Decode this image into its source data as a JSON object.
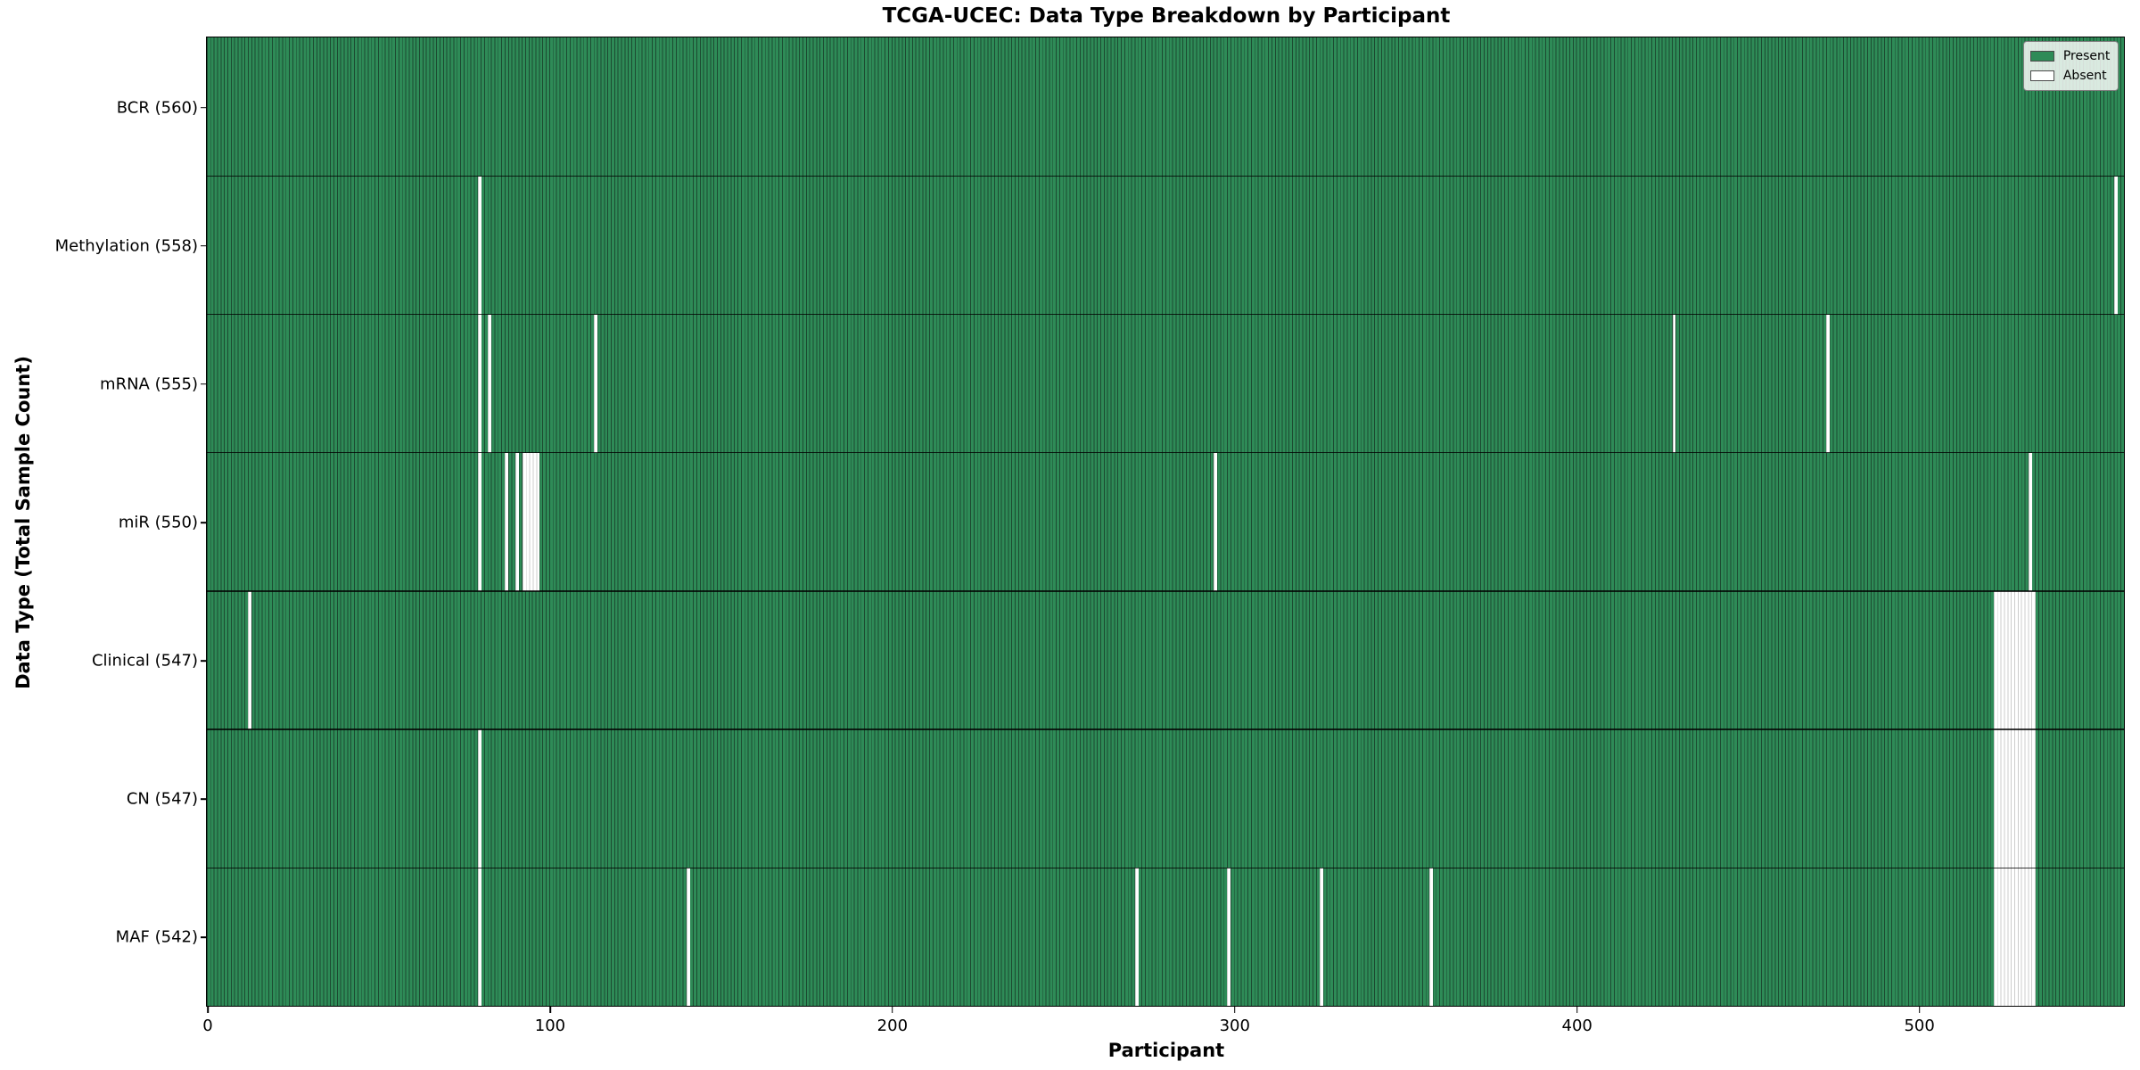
{
  "colors": {
    "present": "#2e8b57",
    "cell_edge": "#1c4a31",
    "absent": "#ffffff",
    "absent_edge": "#cccccc",
    "row_divider": "#1a1a1a",
    "spine": "#000000"
  },
  "chart_data": {
    "type": "heatmap",
    "title": "TCGA-UCEC: Data Type Breakdown by Participant",
    "xlabel": "Participant",
    "ylabel": "Data Type (Total Sample Count)",
    "n_participants": 560,
    "x_ticks": [
      0,
      100,
      200,
      300,
      400,
      500
    ],
    "grid": false,
    "legend_position": "upper right",
    "legend_entries": [
      {
        "label": "Present",
        "color": "#2e8b57"
      },
      {
        "label": "Absent",
        "color": "#ffffff"
      }
    ],
    "value_encoding": {
      "present": 1,
      "absent": 0
    },
    "rows": [
      {
        "label": "BCR (560)",
        "data_type": "BCR",
        "present_count": 560,
        "absent_participants": []
      },
      {
        "label": "Methylation (558)",
        "data_type": "Methylation",
        "present_count": 558,
        "absent_participants": [
          79,
          557
        ]
      },
      {
        "label": "mRNA (555)",
        "data_type": "mRNA",
        "present_count": 555,
        "absent_participants": [
          79,
          82,
          113,
          428,
          473
        ]
      },
      {
        "label": "miR (550)",
        "data_type": "miR",
        "present_count": 550,
        "absent_participants": [
          79,
          87,
          90,
          92,
          93,
          94,
          95,
          96,
          294,
          532
        ]
      },
      {
        "label": "Clinical (547)",
        "data_type": "Clinical",
        "present_count": 547,
        "absent_participants": [
          12,
          522,
          523,
          524,
          525,
          526,
          527,
          528,
          529,
          530,
          531,
          532,
          533
        ]
      },
      {
        "label": "CN (547)",
        "data_type": "CN",
        "present_count": 547,
        "absent_participants": [
          79,
          522,
          523,
          524,
          525,
          526,
          527,
          528,
          529,
          530,
          531,
          532,
          533
        ]
      },
      {
        "label": "MAF (542)",
        "data_type": "MAF",
        "present_count": 542,
        "absent_participants": [
          79,
          140,
          271,
          298,
          325,
          357,
          522,
          523,
          524,
          525,
          526,
          527,
          528,
          529,
          530,
          531,
          532,
          533
        ]
      }
    ]
  }
}
